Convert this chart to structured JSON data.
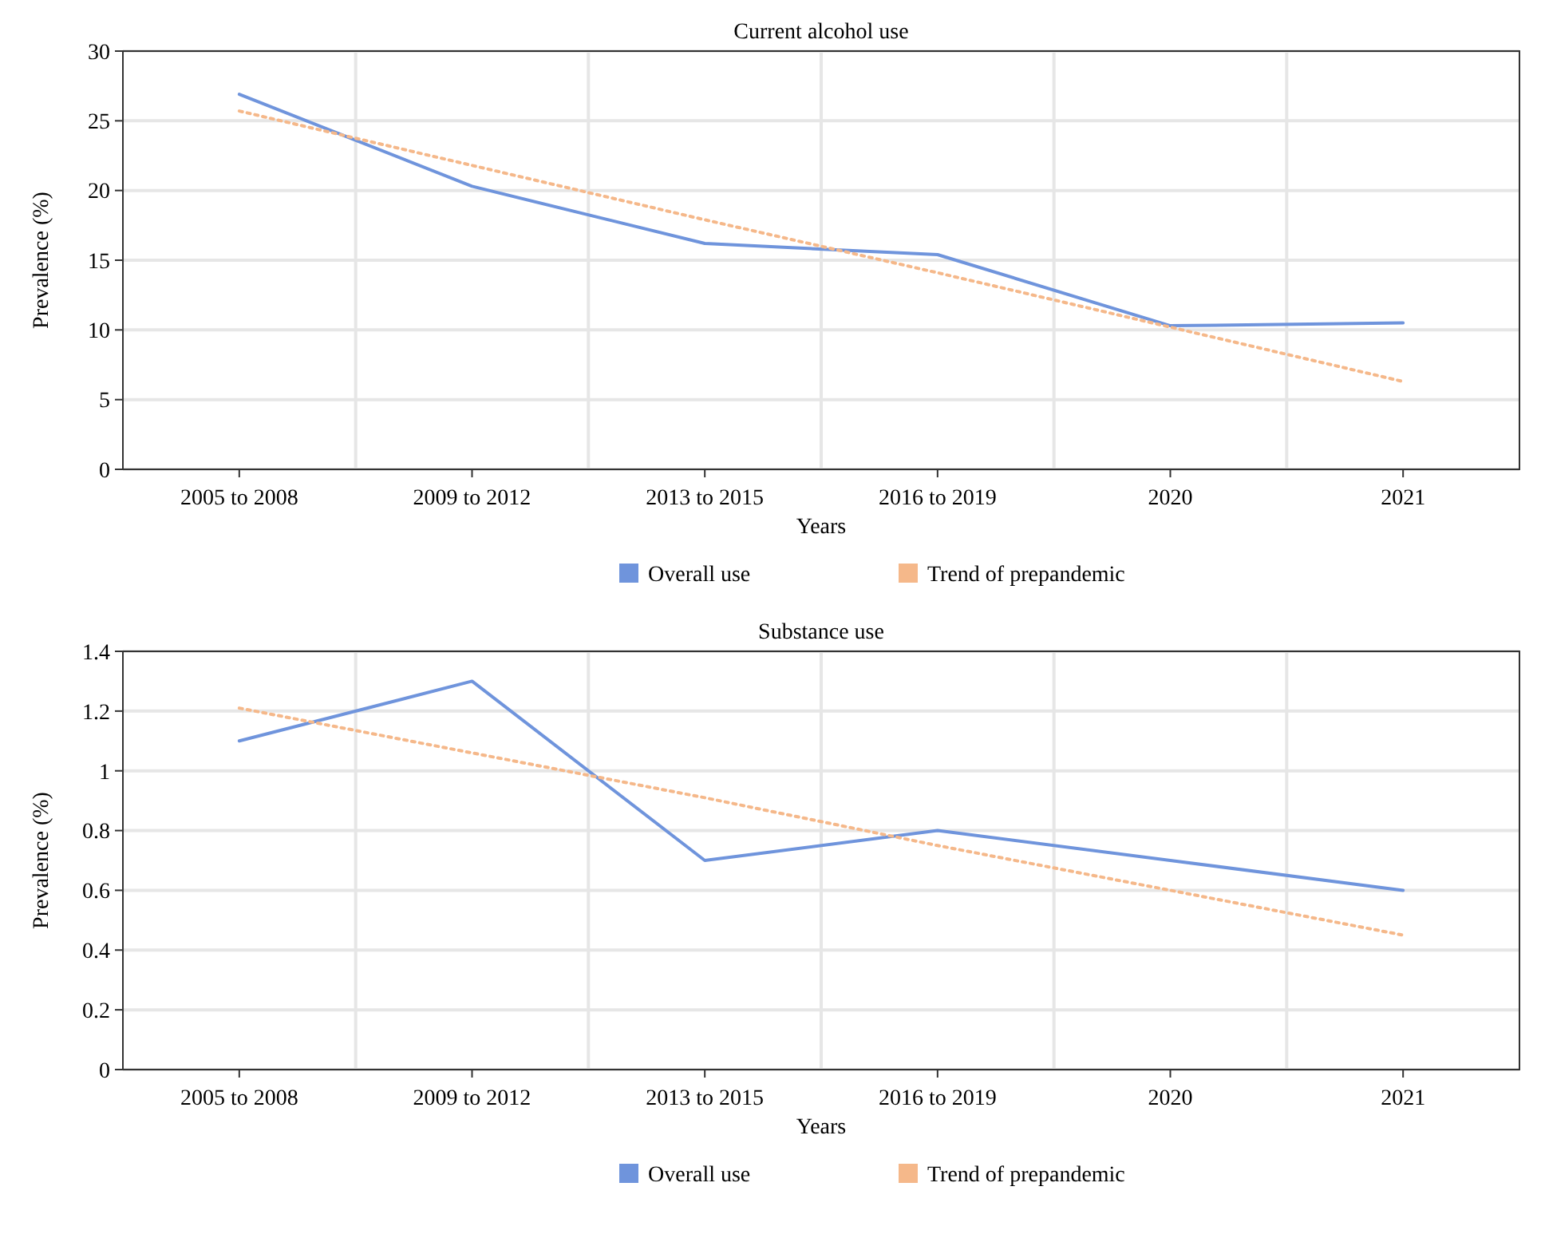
{
  "chart_data": [
    {
      "type": "line",
      "title": "Current alcohol use",
      "xlabel": "Years",
      "ylabel": "Prevalence (%)",
      "categories": [
        "2005 to 2008",
        "2009 to 2012",
        "2013 to 2015",
        "2016 to 2019",
        "2020",
        "2021"
      ],
      "ylim": [
        0,
        30
      ],
      "yticks": [
        0,
        5,
        10,
        15,
        20,
        25,
        30
      ],
      "grid": true,
      "legend": "bottom",
      "marker": "none",
      "series": [
        {
          "name": "Overall use",
          "color": "#6f94dc",
          "line_style": "solid",
          "values": [
            26.9,
            20.3,
            16.2,
            15.4,
            10.3,
            10.5
          ]
        },
        {
          "name": "Trend of prepandemic",
          "color": "#f5b88a",
          "line_style": "dotted",
          "values": [
            25.7,
            21.8,
            17.9,
            14.1,
            10.2,
            6.3
          ]
        }
      ]
    },
    {
      "type": "line",
      "title": "Substance use",
      "xlabel": "Years",
      "ylabel": "Prevalence (%)",
      "categories": [
        "2005 to 2008",
        "2009 to 2012",
        "2013 to 2015",
        "2016 to 2019",
        "2020",
        "2021"
      ],
      "ylim": [
        0,
        1.4
      ],
      "yticks": [
        0,
        0.2,
        0.4,
        0.6,
        0.8,
        1,
        1.2,
        1.4
      ],
      "grid": true,
      "legend": "bottom",
      "marker": "none",
      "series": [
        {
          "name": "Overall use",
          "color": "#6f94dc",
          "line_style": "solid",
          "values": [
            1.1,
            1.3,
            0.7,
            0.8,
            0.7,
            0.6
          ]
        },
        {
          "name": "Trend of prepandemic",
          "color": "#f5b88a",
          "line_style": "dotted",
          "values": [
            1.21,
            1.06,
            0.91,
            0.75,
            0.6,
            0.45
          ]
        }
      ]
    }
  ]
}
